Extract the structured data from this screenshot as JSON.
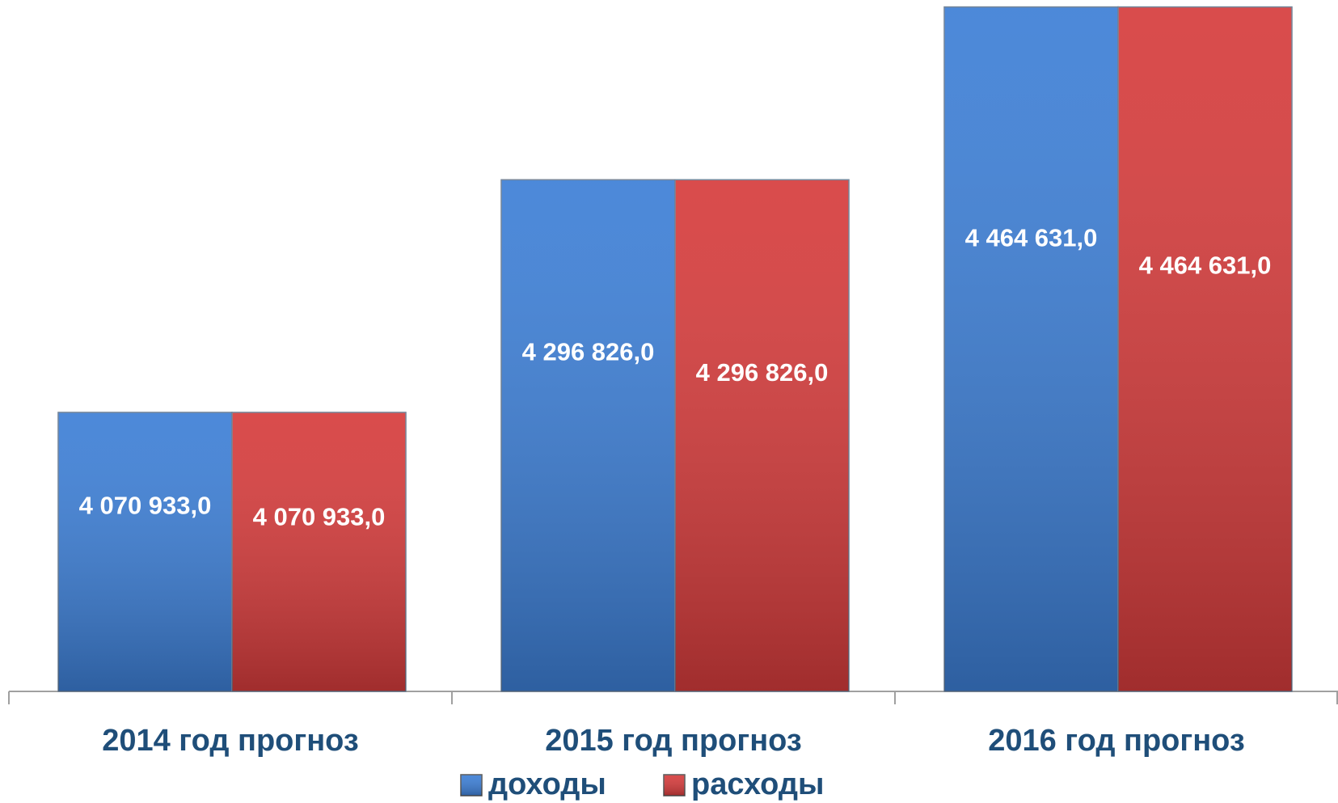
{
  "chart_data": {
    "type": "bar",
    "categories": [
      "2014 год прогноз",
      "2015 год прогноз",
      "2016 год прогноз"
    ],
    "series": [
      {
        "name": "доходы",
        "color": "#3d7fd6",
        "values": [
          4070933.0,
          4296826.0,
          4464631.0
        ],
        "value_labels": [
          "4 070 933,0",
          "4 296 826,0",
          "4 464 631,0"
        ]
      },
      {
        "name": "расходы",
        "color": "#d63c3c",
        "values": [
          4070933.0,
          4296826.0,
          4464631.0
        ],
        "value_labels": [
          "4 070 933,0",
          "4 296 826,0",
          "4 464 631,0"
        ]
      }
    ],
    "ylim": [
      3800000,
      4480000
    ],
    "legend": "bottom"
  }
}
